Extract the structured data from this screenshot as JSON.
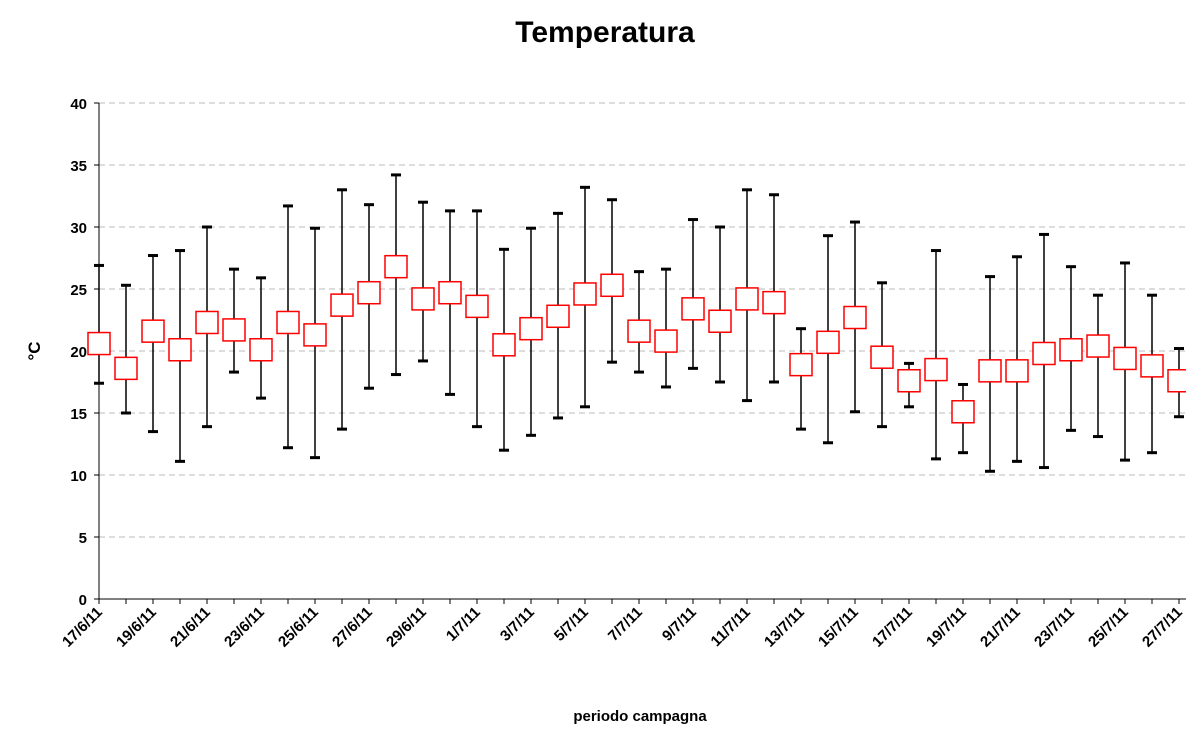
{
  "chart_data": {
    "type": "hilo",
    "title": "Temperatura",
    "x_label": "periodo campagna",
    "y_label": "°C",
    "categories": [
      "17/6/11",
      null,
      "19/6/11",
      null,
      "21/6/11",
      null,
      "23/6/11",
      null,
      "25/6/11",
      null,
      "27/6/11",
      null,
      "29/6/11",
      null,
      "1/7/11",
      null,
      "3/7/11",
      null,
      "5/7/11",
      null,
      "7/7/11",
      null,
      "9/7/11",
      null,
      "11/7/11",
      null,
      "13/7/11",
      null,
      "15/7/11",
      null,
      "17/7/11",
      null,
      "19/7/11",
      null,
      "21/7/11",
      null,
      "23/7/11",
      null,
      "25/7/11",
      null,
      "27/7/11"
    ],
    "high": [
      26.9,
      25.3,
      27.7,
      28.1,
      30.0,
      26.6,
      25.9,
      31.7,
      29.9,
      33.0,
      31.8,
      34.2,
      32.0,
      31.3,
      31.3,
      28.2,
      29.9,
      31.1,
      33.2,
      32.2,
      26.4,
      26.6,
      30.6,
      30.0,
      33.0,
      32.6,
      21.8,
      29.3,
      30.4,
      25.5,
      19.0,
      28.1,
      17.3,
      26.0,
      27.6,
      29.4,
      26.8,
      24.5,
      27.1,
      24.5,
      20.2
    ],
    "low": [
      17.4,
      15.0,
      13.5,
      11.1,
      13.9,
      18.3,
      16.2,
      12.2,
      11.4,
      13.7,
      17.0,
      18.1,
      19.2,
      16.5,
      13.9,
      12.0,
      13.2,
      14.6,
      15.5,
      19.1,
      18.3,
      17.1,
      18.6,
      17.5,
      16.0,
      17.5,
      13.7,
      12.6,
      15.1,
      13.9,
      15.5,
      11.3,
      11.8,
      10.3,
      11.1,
      10.6,
      13.6,
      13.1,
      11.2,
      11.8,
      14.7
    ],
    "mean": [
      20.6,
      18.6,
      21.6,
      20.1,
      22.3,
      21.7,
      20.1,
      22.3,
      21.3,
      23.7,
      24.7,
      26.8,
      24.2,
      24.7,
      23.6,
      20.5,
      21.8,
      22.8,
      24.6,
      25.3,
      21.6,
      20.8,
      23.4,
      22.4,
      24.2,
      23.9,
      18.9,
      20.7,
      22.7,
      19.5,
      17.6,
      18.5,
      15.1,
      18.4,
      18.4,
      19.8,
      20.1,
      20.4,
      19.4,
      18.8,
      17.6
    ],
    "mean_color": "#ff0000",
    "range_color": "#000000",
    "ylim": [
      0,
      40
    ],
    "yticks": [
      0,
      5,
      10,
      15,
      20,
      25,
      30,
      35,
      40
    ],
    "grid": true
  }
}
